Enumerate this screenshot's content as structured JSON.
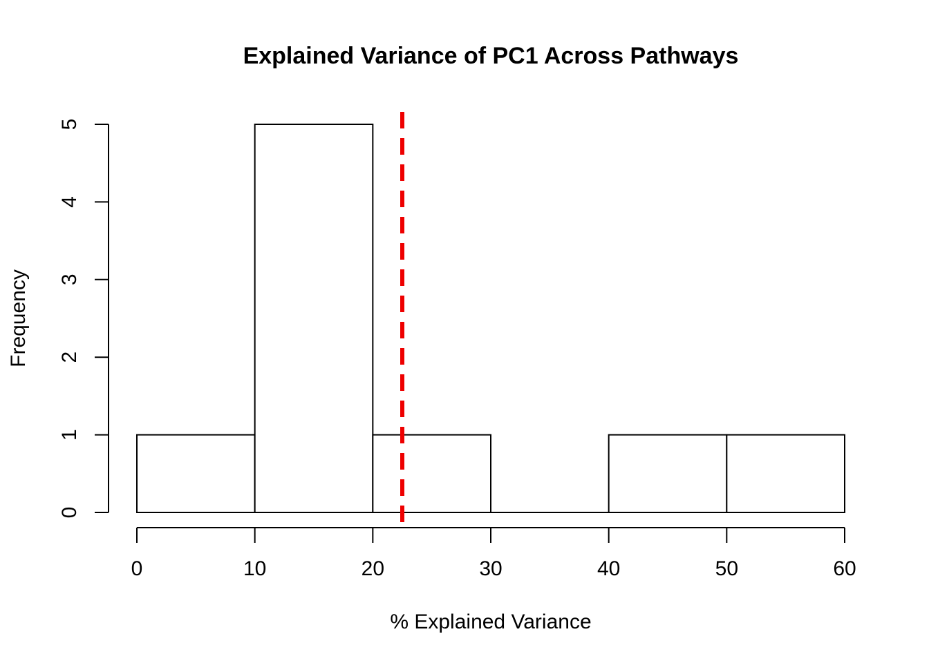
{
  "chart_data": {
    "type": "bar",
    "subtype": "histogram",
    "title": "Explained Variance of PC1 Across Pathways",
    "xlabel": "% Explained Variance",
    "ylabel": "Frequency",
    "bins": [
      {
        "from": 0,
        "to": 10,
        "count": 1
      },
      {
        "from": 10,
        "to": 20,
        "count": 5
      },
      {
        "from": 20,
        "to": 30,
        "count": 1
      },
      {
        "from": 30,
        "to": 40,
        "count": 0
      },
      {
        "from": 40,
        "to": 50,
        "count": 1
      },
      {
        "from": 50,
        "to": 60,
        "count": 1
      }
    ],
    "xlim": [
      0,
      60
    ],
    "ylim": [
      0,
      5
    ],
    "x_ticks": [
      0,
      10,
      20,
      30,
      40,
      50,
      60
    ],
    "y_ticks": [
      0,
      1,
      2,
      3,
      4,
      5
    ],
    "reference_line": {
      "x": 22.5,
      "style": "dashed",
      "color": "#ee0000"
    },
    "grid": false,
    "colors": {
      "bar_fill": "#ffffff",
      "bar_stroke": "#000000",
      "reference_line": "#ee0000"
    }
  }
}
